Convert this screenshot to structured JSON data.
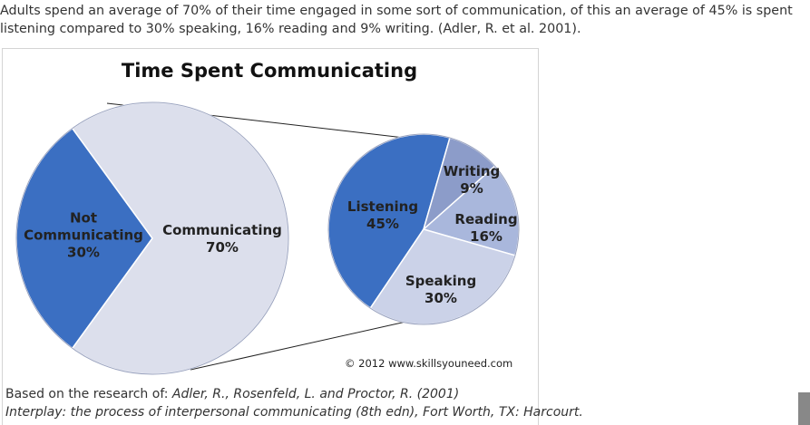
{
  "intro": "Adults spend an average of 70% of their time engaged in some sort of communication, of this an average of 45% is spent listening compared to 30% speaking, 16% reading and 9% writing. (Adler, R. et al. 2001).",
  "chart_data": [
    {
      "type": "pie",
      "title": "Time Spent Communicating",
      "categories": [
        "Not Communicating",
        "Communicating"
      ],
      "values": [
        30,
        70
      ],
      "value_labels": [
        "30%",
        "70%"
      ],
      "colors": [
        "#3b6fc2",
        "#dcdfec"
      ]
    },
    {
      "type": "pie",
      "categories": [
        "Listening",
        "Writing",
        "Reading",
        "Speaking"
      ],
      "values": [
        45,
        9,
        16,
        30
      ],
      "value_labels": [
        "45%",
        "9%",
        "16%",
        "30%"
      ],
      "colors": [
        "#3b6fc2",
        "#8c9cc9",
        "#a9b7dc",
        "#cbd2e8"
      ]
    }
  ],
  "credit": "© 2012 www.skillsyouneed.com",
  "caption_intro": "Based on the research of: ",
  "caption_ref": "Adler, R., Rosenfeld, L. and Proctor, R. (2001)",
  "caption_line2": "Interplay: the process of interpersonal communicating (8th edn), Fort Worth, TX: Harcourt."
}
